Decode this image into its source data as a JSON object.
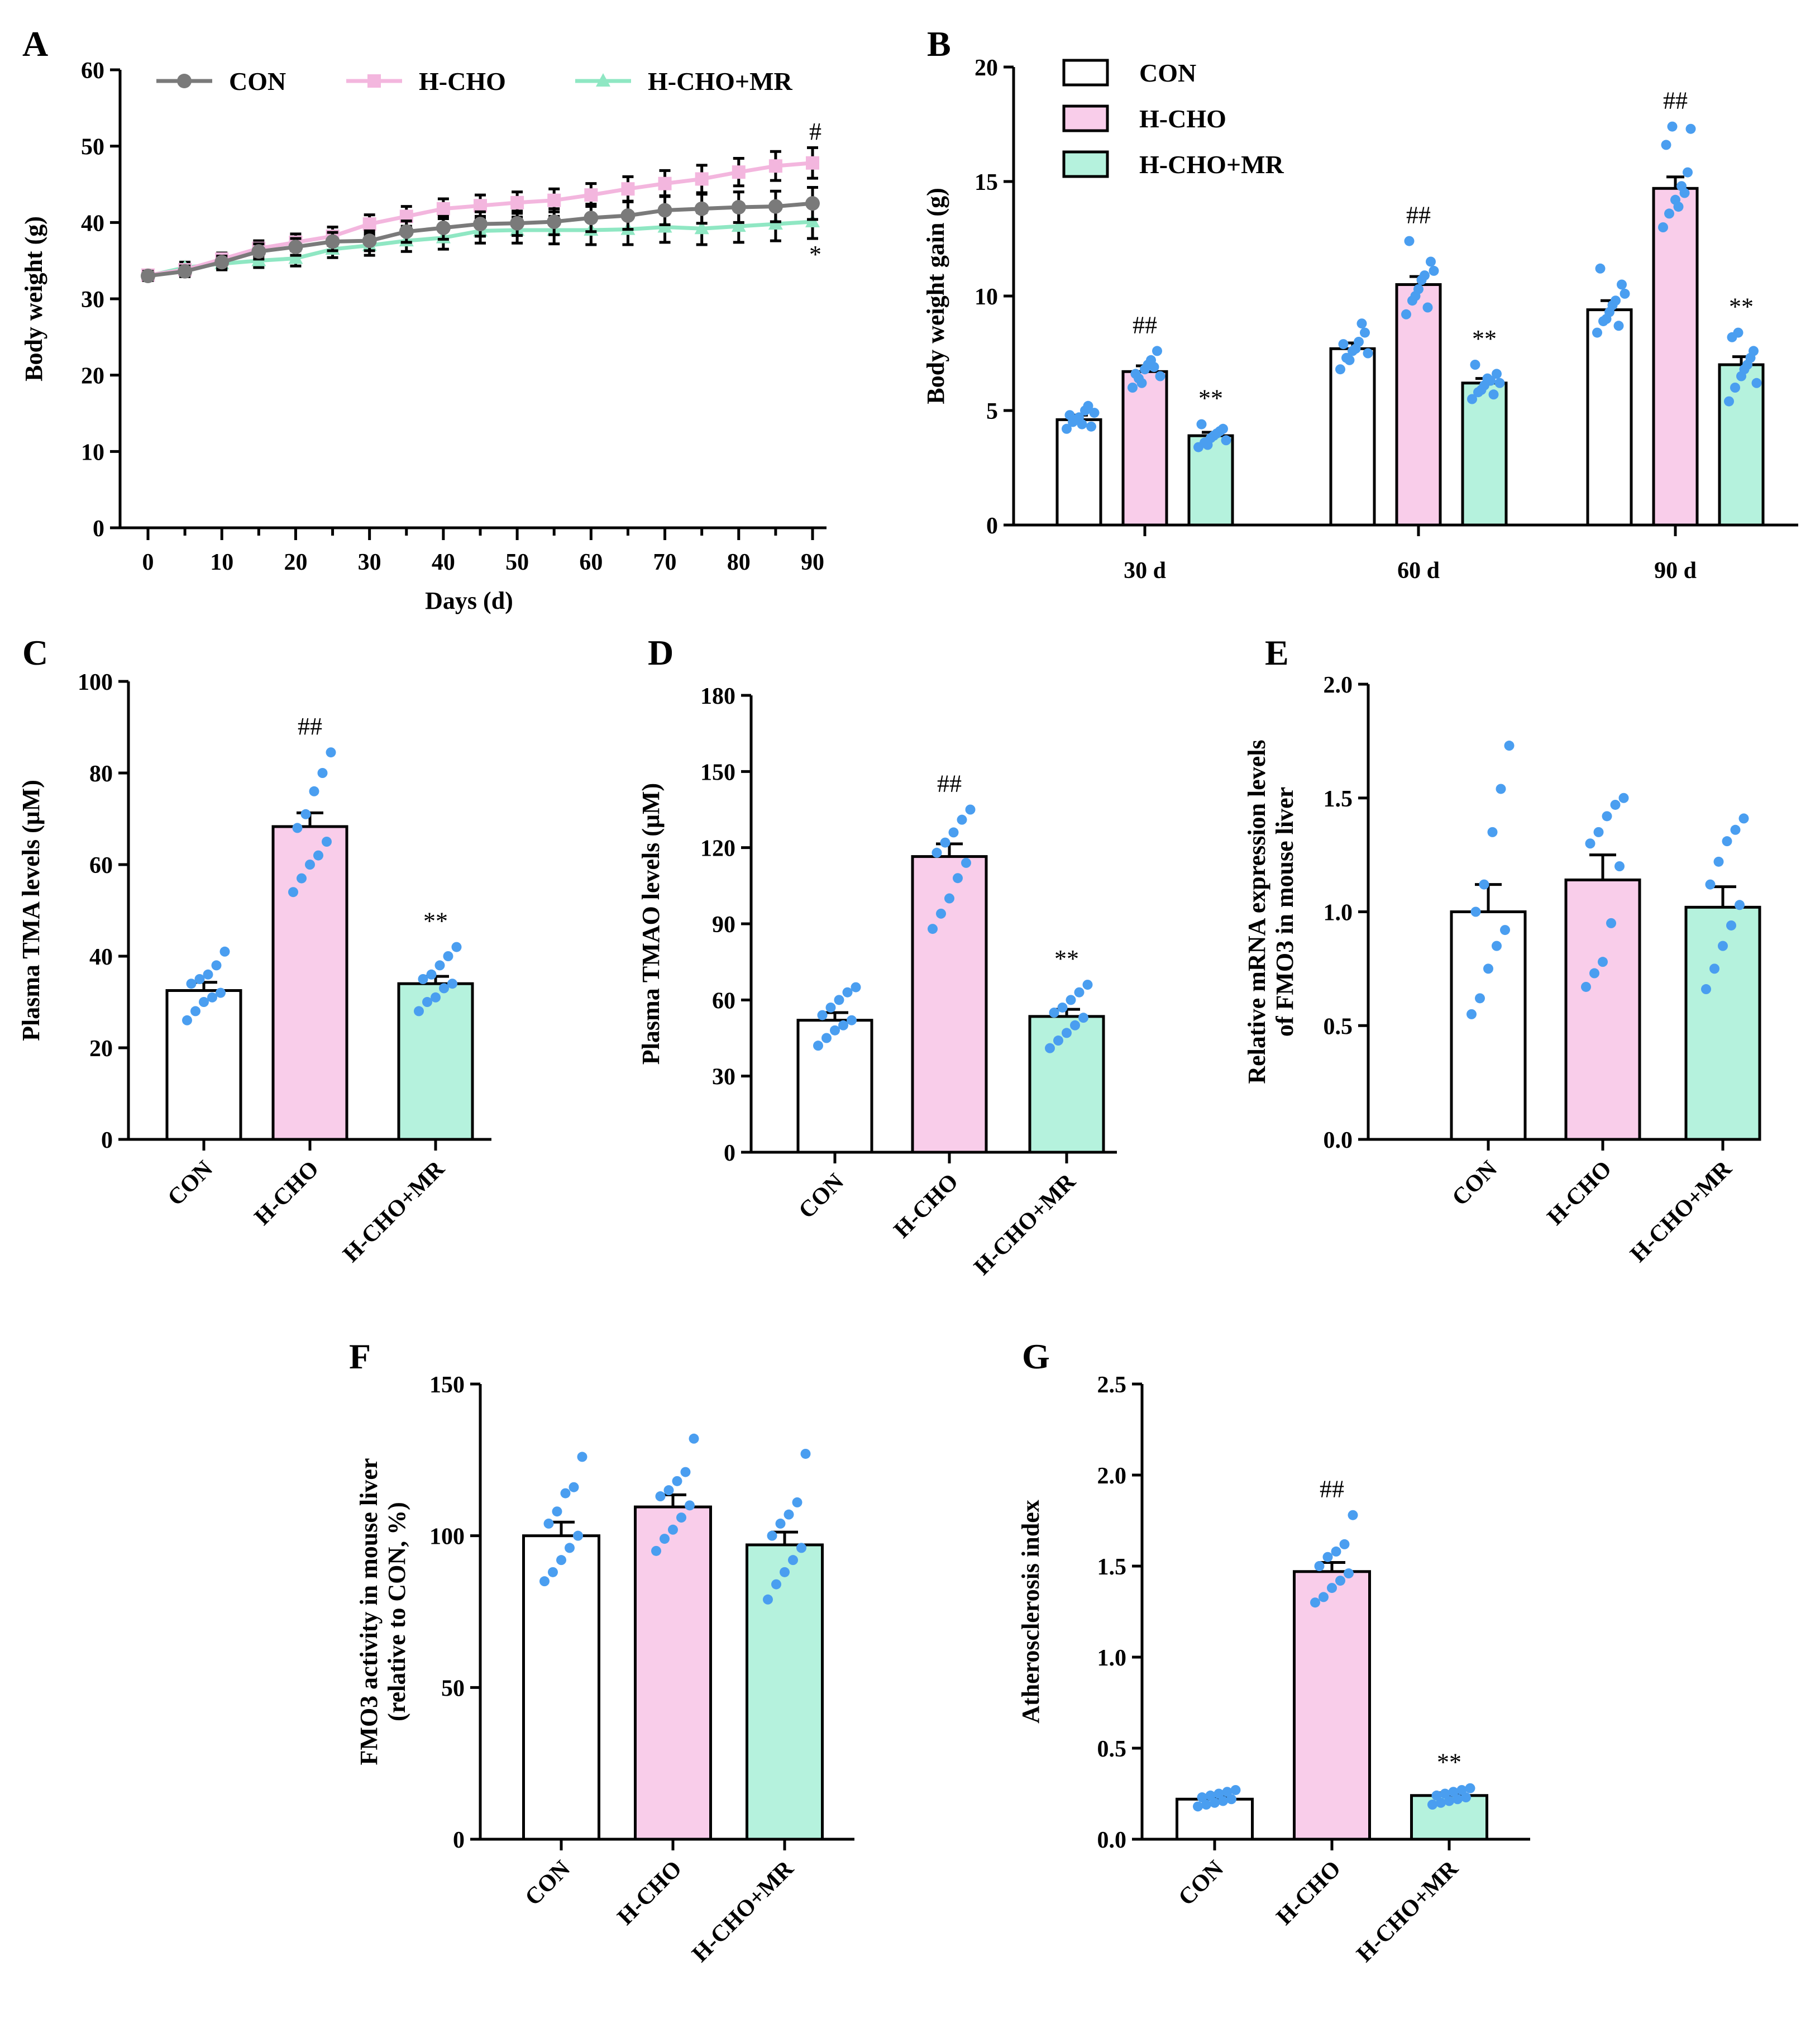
{
  "colors": {
    "con_fill": "#ffffff",
    "hcho_fill": "#f9cdea",
    "hchomr_fill": "#b5f2dd",
    "con_line": "#7a7a7a",
    "hcho_line": "#f3b6de",
    "hchomr_line": "#8fe7c3",
    "dots": "#4a9ef0",
    "axis": "#000000"
  },
  "chart_data": [
    {
      "panel": "A",
      "type": "line",
      "xlabel": "Days (d)",
      "ylabel": "Body weight (g)",
      "xlim": [
        0,
        90
      ],
      "ylim": [
        0,
        60
      ],
      "x_ticks": [
        "0",
        "10",
        "20",
        "30",
        "40",
        "50",
        "60",
        "70",
        "80",
        "90"
      ],
      "y_ticks": [
        "0",
        "10",
        "20",
        "30",
        "40",
        "50",
        "60"
      ],
      "x": [
        0,
        5,
        10,
        15,
        20,
        25,
        30,
        35,
        40,
        45,
        50,
        55,
        60,
        65,
        70,
        75,
        80,
        85,
        90
      ],
      "series": [
        {
          "name": "CON",
          "values": [
            33.0,
            33.6,
            34.8,
            36.2,
            36.8,
            37.5,
            37.6,
            38.8,
            39.3,
            39.8,
            39.9,
            40.1,
            40.6,
            40.9,
            41.6,
            41.8,
            42.0,
            42.1,
            42.5
          ],
          "error": [
            0.6,
            0.7,
            0.8,
            1.0,
            1.1,
            1.2,
            1.3,
            1.4,
            1.5,
            1.6,
            1.6,
            1.7,
            1.8,
            1.8,
            1.9,
            1.9,
            2.0,
            2.0,
            2.1
          ]
        },
        {
          "name": "H-CHO",
          "values": [
            33.1,
            33.8,
            35.2,
            36.6,
            37.4,
            38.2,
            39.8,
            40.8,
            41.8,
            42.2,
            42.6,
            42.9,
            43.6,
            44.4,
            45.1,
            45.7,
            46.6,
            47.4,
            47.8
          ],
          "error": [
            0.6,
            0.7,
            0.8,
            1.0,
            1.1,
            1.2,
            1.2,
            1.3,
            1.3,
            1.4,
            1.4,
            1.5,
            1.5,
            1.6,
            1.7,
            1.8,
            1.8,
            1.9,
            2.0
          ]
        },
        {
          "name": "H-CHO+MR",
          "values": [
            33.0,
            34.1,
            34.6,
            35.0,
            35.3,
            36.5,
            37.0,
            37.6,
            38.0,
            38.9,
            39.0,
            39.0,
            39.0,
            39.1,
            39.4,
            39.2,
            39.5,
            39.8,
            40.1
          ],
          "error": [
            0.6,
            0.7,
            0.8,
            0.9,
            1.0,
            1.1,
            1.3,
            1.4,
            1.5,
            1.6,
            1.7,
            1.8,
            1.9,
            2.0,
            2.0,
            2.1,
            2.1,
            2.2,
            2.2
          ]
        }
      ],
      "annotations": [
        {
          "text": "#",
          "series": "H-CHO",
          "x": 90
        },
        {
          "text": "*",
          "series": "H-CHO+MR",
          "x": 90
        }
      ],
      "legend": [
        "CON",
        "H-CHO",
        "H-CHO+MR"
      ]
    },
    {
      "panel": "B",
      "type": "bar",
      "categories": [
        "30 d",
        "60 d",
        "90 d"
      ],
      "xlabel": "",
      "ylabel": "Body weight gain (g)",
      "ylim": [
        0,
        20
      ],
      "y_ticks": [
        "0",
        "5",
        "10",
        "15",
        "20"
      ],
      "legend": [
        "CON",
        "H-CHO",
        "H-CHO+MR"
      ],
      "series": [
        {
          "name": "CON",
          "values": [
            4.6,
            7.7,
            9.4
          ],
          "error": [
            0.2,
            0.25,
            0.4
          ],
          "points": [
            [
              4.2,
              4.5,
              4.7,
              5.0,
              4.3,
              4.8,
              4.6,
              4.4,
              5.2,
              4.9
            ],
            [
              6.8,
              7.3,
              7.6,
              8.0,
              8.4,
              7.9,
              7.2,
              7.7,
              8.8,
              7.5
            ],
            [
              8.4,
              8.9,
              9.3,
              9.8,
              10.5,
              11.2,
              9.0,
              9.6,
              8.7,
              10.1
            ]
          ],
          "sig": [
            "",
            "",
            ""
          ]
        },
        {
          "name": "H-CHO",
          "values": [
            6.7,
            10.5,
            14.7
          ],
          "error": [
            0.25,
            0.35,
            0.5
          ],
          "points": [
            [
              6.0,
              6.4,
              6.8,
              7.2,
              7.6,
              6.6,
              6.2,
              7.0,
              6.9,
              6.5
            ],
            [
              9.2,
              9.8,
              10.3,
              10.9,
              11.5,
              12.4,
              10.0,
              10.7,
              9.5,
              11.1
            ],
            [
              13.0,
              13.6,
              14.2,
              14.8,
              15.4,
              16.6,
              17.4,
              13.9,
              14.5,
              17.3
            ]
          ],
          "sig": [
            "##",
            "##",
            "##"
          ]
        },
        {
          "name": "H-CHO+MR",
          "values": [
            3.9,
            6.2,
            7.0
          ],
          "error": [
            0.15,
            0.2,
            0.35
          ],
          "points": [
            [
              3.4,
              3.6,
              3.8,
              4.0,
              4.2,
              4.4,
              3.5,
              3.9,
              4.1,
              3.7
            ],
            [
              5.5,
              5.8,
              6.1,
              6.3,
              6.6,
              7.0,
              5.9,
              6.4,
              5.7,
              6.2
            ],
            [
              5.4,
              6.0,
              6.5,
              7.0,
              7.6,
              8.2,
              8.4,
              6.8,
              7.3,
              6.2
            ]
          ],
          "sig": [
            "**",
            "**",
            "**"
          ]
        }
      ]
    },
    {
      "panel": "C",
      "type": "bar",
      "categories": [
        "CON",
        "H-CHO",
        "H-CHO+MR"
      ],
      "ylabel": "Plasma TMA levels (μM)",
      "ylim": [
        0,
        100
      ],
      "y_ticks": [
        "0",
        "20",
        "40",
        "60",
        "80",
        "100"
      ],
      "values": [
        32.5,
        68.3,
        34.0
      ],
      "error": [
        1.8,
        3.0,
        1.6
      ],
      "points": [
        [
          26,
          28,
          30,
          31,
          32,
          34,
          35,
          36,
          38,
          41
        ],
        [
          54,
          57,
          60,
          62,
          65,
          68,
          71,
          76,
          80,
          84.5
        ],
        [
          28,
          30,
          31,
          33,
          34,
          35,
          36,
          38,
          40,
          42
        ]
      ],
      "sig": [
        "",
        "##",
        "**"
      ]
    },
    {
      "panel": "D",
      "type": "bar",
      "categories": [
        "CON",
        "H-CHO",
        "H-CHO+MR"
      ],
      "ylabel": "Plasma TMAO levels (μM)",
      "ylim": [
        0,
        180
      ],
      "y_ticks": [
        "0",
        "30",
        "60",
        "90",
        "120",
        "150",
        "180"
      ],
      "values": [
        52,
        116.5,
        53.5
      ],
      "error": [
        3.0,
        5.0,
        2.8
      ],
      "points": [
        [
          42,
          45,
          48,
          50,
          52,
          54,
          57,
          60,
          63,
          65
        ],
        [
          88,
          94,
          100,
          108,
          114,
          118,
          122,
          126,
          131,
          135
        ],
        [
          41,
          44,
          47,
          50,
          53,
          55,
          57,
          60,
          63,
          66
        ]
      ],
      "sig": [
        "",
        "##",
        "**"
      ]
    },
    {
      "panel": "E",
      "type": "bar",
      "categories": [
        "CON",
        "H-CHO",
        "H-CHO+MR"
      ],
      "ylabel": "Relative mRNA expression levels of FMO3 in mouse liver",
      "ylabel_lines": [
        "Relative mRNA expression levels",
        "of FMO3 in mouse liver"
      ],
      "ylim": [
        0,
        2.0
      ],
      "y_ticks": [
        "0.0",
        "0.5",
        "1.0",
        "1.5",
        "2.0"
      ],
      "values": [
        1.0,
        1.14,
        1.02
      ],
      "error": [
        0.12,
        0.11,
        0.09
      ],
      "points": [
        [
          0.55,
          0.62,
          0.75,
          0.85,
          0.92,
          1.0,
          1.12,
          1.35,
          1.54,
          1.73
        ],
        [
          0.67,
          0.73,
          0.78,
          0.95,
          1.2,
          1.3,
          1.35,
          1.42,
          1.47,
          1.5
        ],
        [
          0.66,
          0.75,
          0.85,
          0.94,
          1.03,
          1.12,
          1.22,
          1.31,
          1.36,
          1.41
        ]
      ],
      "sig": [
        "",
        "",
        ""
      ]
    },
    {
      "panel": "F",
      "type": "bar",
      "categories": [
        "CON",
        "H-CHO",
        "H-CHO+MR"
      ],
      "ylabel": "FMO3 activity in mouse liver (relative to CON, %)",
      "ylabel_lines": [
        "FMO3 activity in mouse liver",
        "(relative to CON, %)"
      ],
      "ylim": [
        0,
        150
      ],
      "y_ticks": [
        "0",
        "50",
        "100",
        "150"
      ],
      "values": [
        100,
        109.5,
        97
      ],
      "error": [
        4.5,
        4.0,
        4.2
      ],
      "points": [
        [
          85,
          88,
          92,
          96,
          100,
          104,
          108,
          114,
          116,
          126
        ],
        [
          95,
          99,
          102,
          106,
          110,
          113,
          115,
          118,
          121,
          132
        ],
        [
          79,
          84,
          88,
          92,
          96,
          100,
          104,
          107,
          111,
          127
        ]
      ],
      "sig": [
        "",
        "",
        ""
      ]
    },
    {
      "panel": "G",
      "type": "bar",
      "categories": [
        "CON",
        "H-CHO",
        "H-CHO+MR"
      ],
      "ylabel": "Atherosclerosis index",
      "ylim": [
        0,
        2.5
      ],
      "y_ticks": [
        "0.0",
        "0.5",
        "1.0",
        "1.5",
        "2.0",
        "2.5"
      ],
      "values": [
        0.22,
        1.47,
        0.24
      ],
      "error": [
        0.015,
        0.05,
        0.015
      ],
      "points": [
        [
          0.18,
          0.19,
          0.2,
          0.21,
          0.22,
          0.23,
          0.24,
          0.25,
          0.26,
          0.27
        ],
        [
          1.3,
          1.33,
          1.38,
          1.42,
          1.46,
          1.5,
          1.55,
          1.58,
          1.62,
          1.78
        ],
        [
          0.19,
          0.2,
          0.21,
          0.22,
          0.23,
          0.24,
          0.25,
          0.26,
          0.27,
          0.28
        ]
      ],
      "sig": [
        "",
        "##",
        "**"
      ]
    }
  ]
}
